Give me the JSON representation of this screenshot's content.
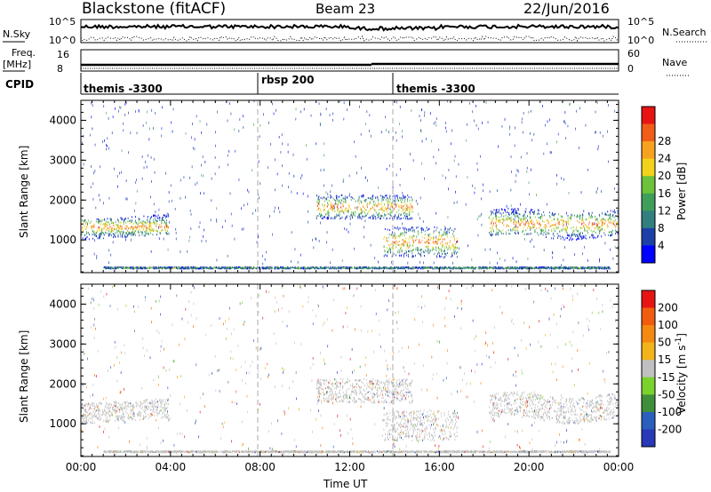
{
  "header": {
    "station": "Blackstone (fitACF)",
    "beam": "Beam 23",
    "date": "22/Jun/2016"
  },
  "params": {
    "nsky_label": "N.Sky",
    "nsearch_label": "N.Search",
    "nsky_ticks": [
      "10^5",
      "10^0"
    ],
    "nsearch_ticks": [
      "10^5",
      "10^0"
    ],
    "freq_label": "Freq.",
    "freq_unit": "[MHz]",
    "freq_ticks": [
      "16",
      "8"
    ],
    "nave_label": "Nave",
    "nave_ticks": [
      "60",
      "0"
    ],
    "cpid_label": "CPID",
    "cpid_segments": [
      {
        "name": "themis -3300",
        "start_hour": 0
      },
      {
        "name": "rbsp 200",
        "start_hour": 8
      },
      {
        "name": "themis -3300",
        "start_hour": 14
      }
    ]
  },
  "chart_data": [
    {
      "type": "heatmap",
      "name": "power-panel",
      "ylabel": "Slant Range [km]",
      "xlim": [
        0,
        24
      ],
      "ylim": [
        180,
        4500
      ],
      "yticks": [
        1000,
        2000,
        3000,
        4000
      ],
      "colorbar": {
        "label": "Power [dB]",
        "ticks": [
          4,
          8,
          12,
          16,
          20,
          24,
          28
        ],
        "colors": [
          "#0000ff",
          "#1c3fa8",
          "#317f7f",
          "#3f9e5a",
          "#6cc23a",
          "#f2d21a",
          "#f6a21f",
          "#f25c19",
          "#e81313"
        ]
      },
      "echo_bands": [
        {
          "label": "near-range ground scatter",
          "x": [
            1.0,
            23.6
          ],
          "y": [
            260,
            300
          ]
        },
        {
          "label": "morning ionospheric band",
          "x": [
            0.0,
            3.9
          ],
          "y": [
            1050,
            1550
          ]
        },
        {
          "label": "midday band",
          "x": [
            10.5,
            14.8
          ],
          "y": [
            1500,
            2100
          ]
        },
        {
          "label": "afternoon band",
          "x": [
            13.5,
            16.8
          ],
          "y": [
            550,
            1300
          ]
        },
        {
          "label": "evening band",
          "x": [
            18.2,
            24.0
          ],
          "y": [
            1050,
            1700
          ]
        }
      ]
    },
    {
      "type": "heatmap",
      "name": "velocity-panel",
      "ylabel": "Slant Range [km]",
      "xlabel": "Time UT",
      "xlim": [
        0,
        24
      ],
      "ylim": [
        180,
        4500
      ],
      "yticks": [
        1000,
        2000,
        3000,
        4000
      ],
      "xticks": [
        "00:00",
        "04:00",
        "08:00",
        "12:00",
        "16:00",
        "20:00",
        "00:00"
      ],
      "colorbar": {
        "label": "Velocity [m s^-1]",
        "ticks": [
          200,
          100,
          50,
          15,
          -15,
          -50,
          -100,
          -200
        ],
        "colors": [
          "#2838b8",
          "#2a5fbd",
          "#3f8f3a",
          "#7ad22c",
          "#c0c0c0",
          "#f3b31b",
          "#f58a12",
          "#f25c0e",
          "#e81313"
        ]
      }
    }
  ]
}
